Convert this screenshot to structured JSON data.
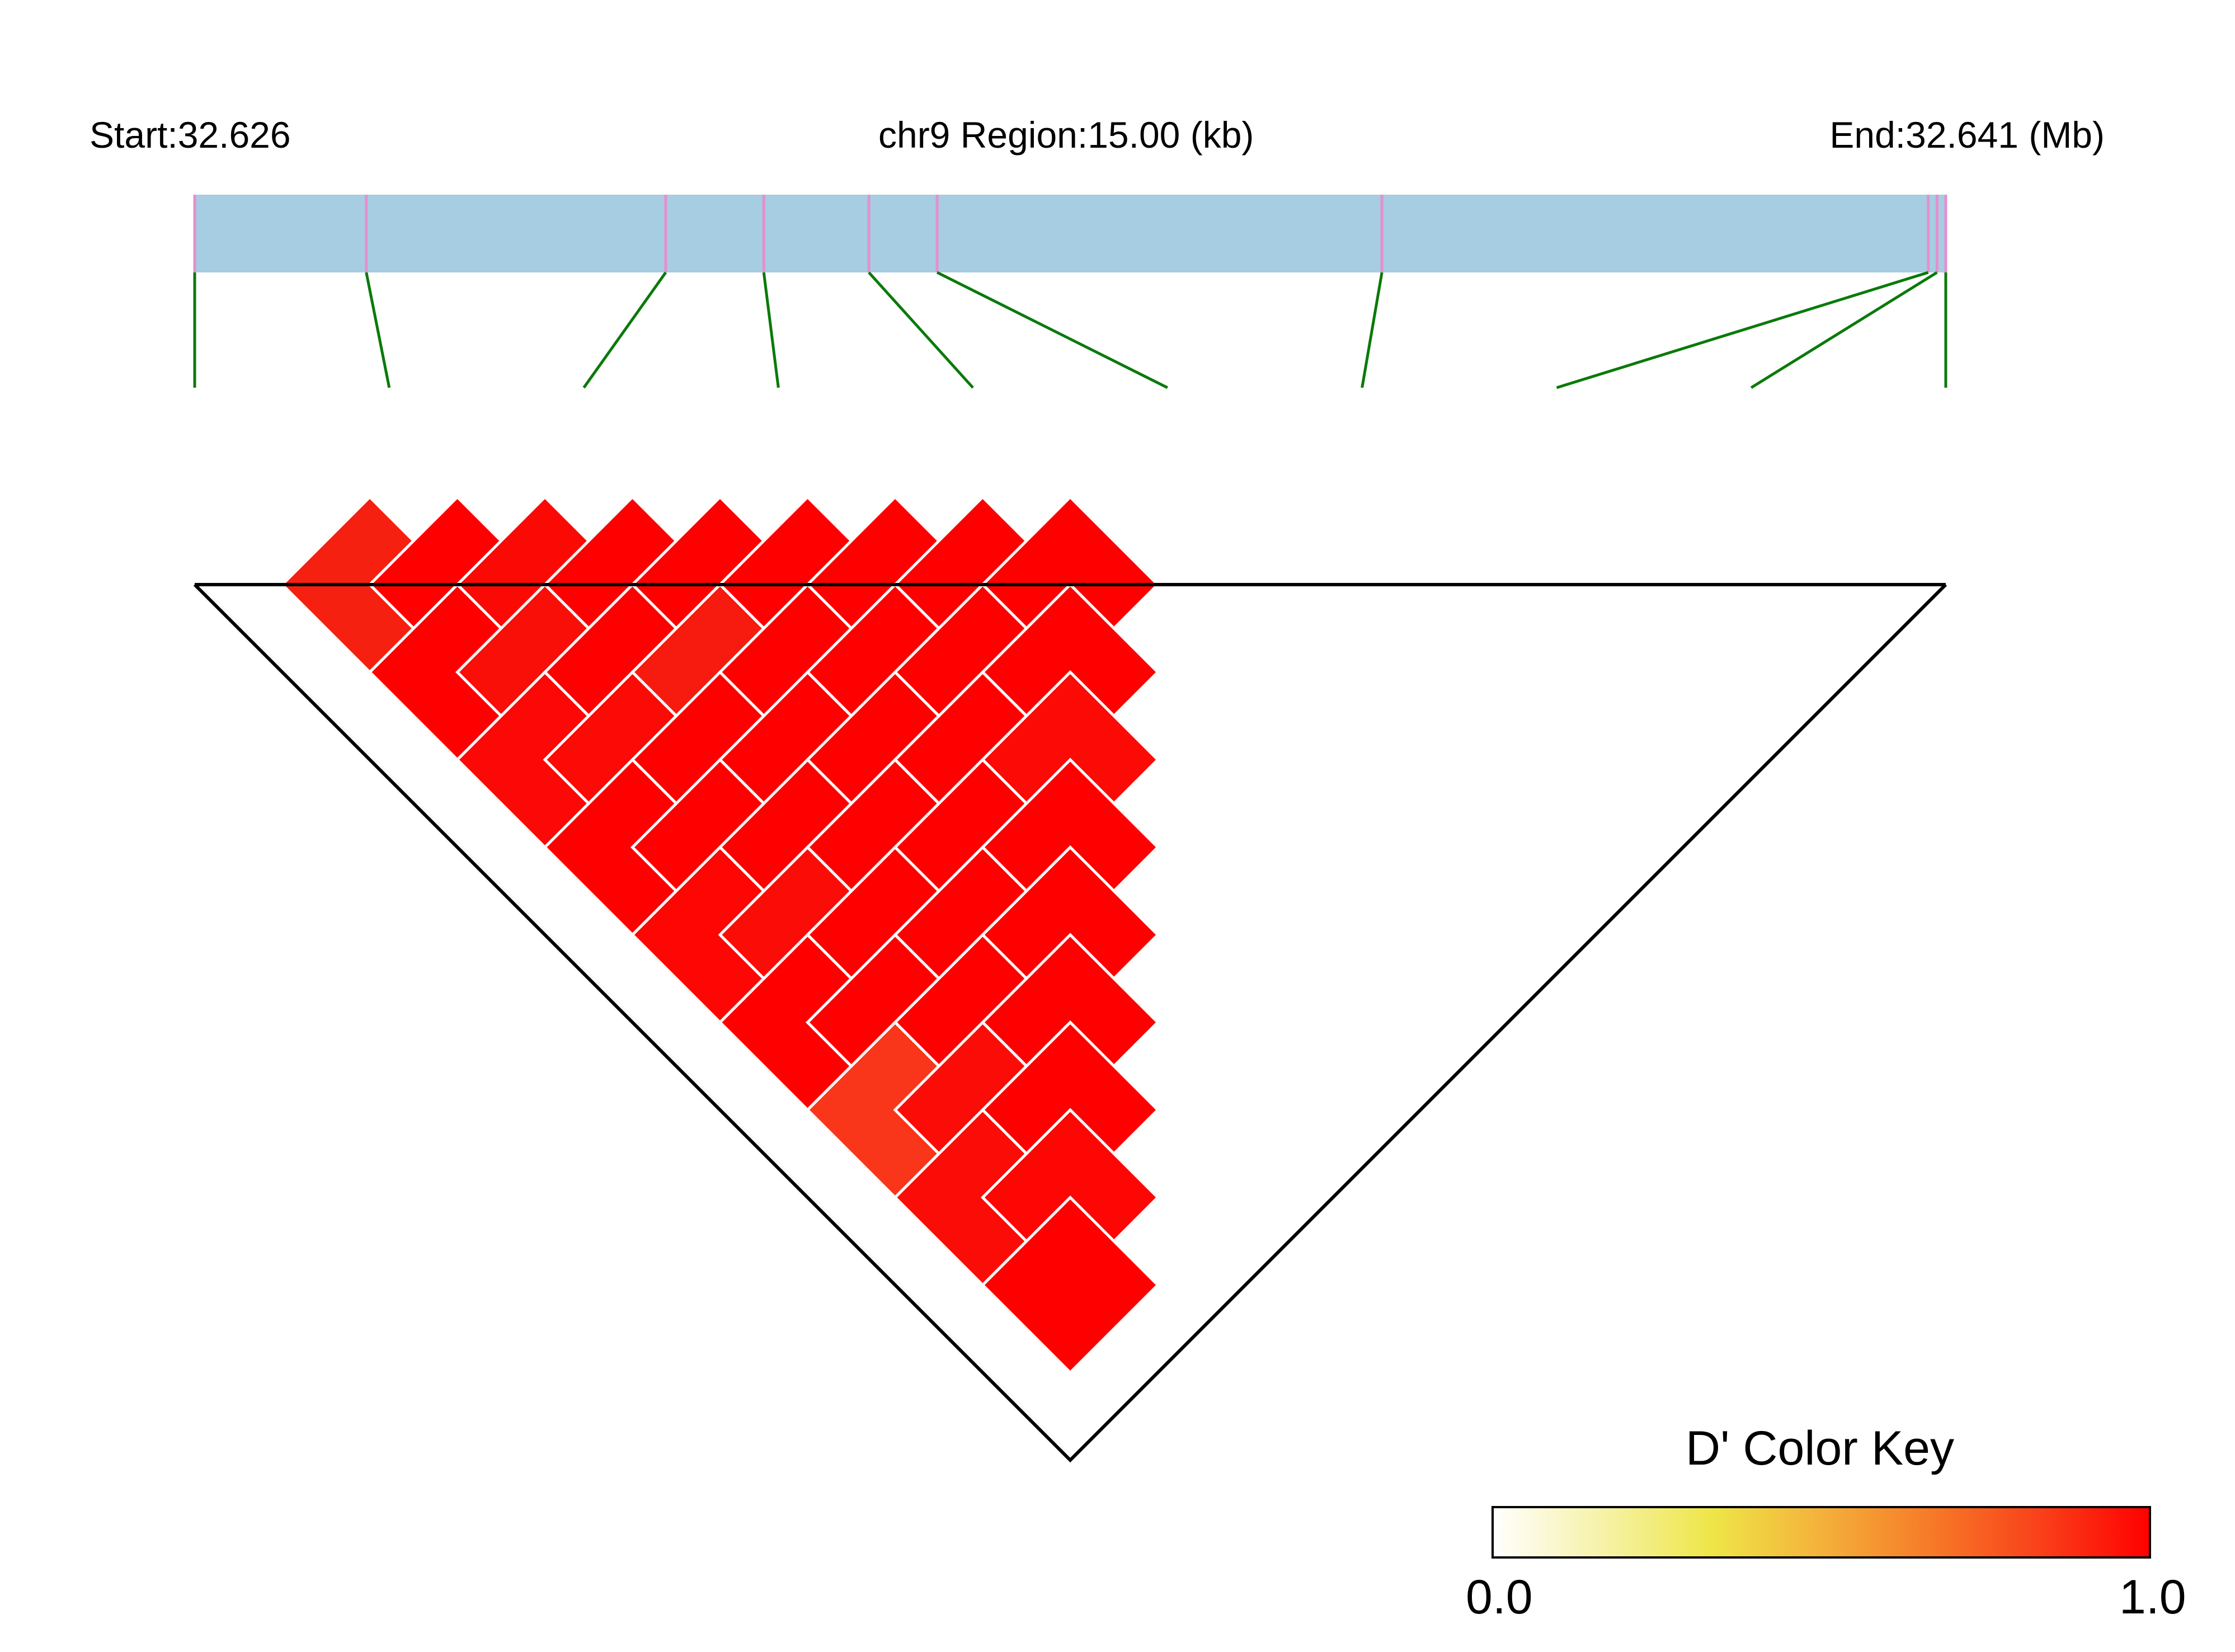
{
  "header": {
    "start_label": "Start:32.626",
    "region_label": "chr9 Region:15.00 (kb)",
    "end_label": "End:32.641 (Mb)"
  },
  "colors": {
    "region_bar": "#a6cde1",
    "snp_tick": "#e58fcf",
    "connector": "#0a7a0a",
    "cell_border": "#ffffff",
    "outline": "#000000"
  },
  "color_key": {
    "title": "D' Color Key",
    "min_label": "0.0",
    "max_label": "1.0",
    "gradient": [
      "#ffffff",
      "#f6f2a8",
      "#eee648",
      "#f4b13a",
      "#f67a28",
      "#f9401a",
      "#ff0000"
    ]
  },
  "chart_data": {
    "type": "heatmap",
    "description_metric": "D'",
    "region_start_mb": 32.626,
    "region_end_mb": 32.641,
    "snp_count": 10,
    "snp_positions_fraction": [
      0.0,
      0.098,
      0.269,
      0.325,
      0.385,
      0.424,
      0.678,
      0.99,
      0.995,
      1.0
    ],
    "dprime_colors": [
      [
        "#f52010",
        "#ff0000",
        "#fb0a05",
        "#ff0000",
        "#ff0000",
        "#ff0000",
        "#ff0000",
        "#ff0000",
        "#ff0000"
      ],
      [
        "#fe0000",
        "#fa0e08",
        "#ff0000",
        "#f71a0e",
        "#ff0000",
        "#ff0000",
        "#ff0000",
        "#ff0000"
      ],
      [
        "#fc0806",
        "#fb0a06",
        "#ff0000",
        "#ff0000",
        "#ff0000",
        "#ff0000",
        "#fc0a06"
      ],
      [
        "#ff0000",
        "#ff0000",
        "#ff0000",
        "#ff0000",
        "#ff0000",
        "#ff0000"
      ],
      [
        "#fd0604",
        "#fb0c06",
        "#ff0000",
        "#ff0000",
        "#ff0000"
      ],
      [
        "#ff0000",
        "#ff0000",
        "#ff0000",
        "#ff0000"
      ],
      [
        "#f9351a",
        "#fc0c06",
        "#ff0000"
      ],
      [
        "#fc0c06",
        "#fd0604"
      ],
      [
        "#ff0000"
      ]
    ]
  }
}
